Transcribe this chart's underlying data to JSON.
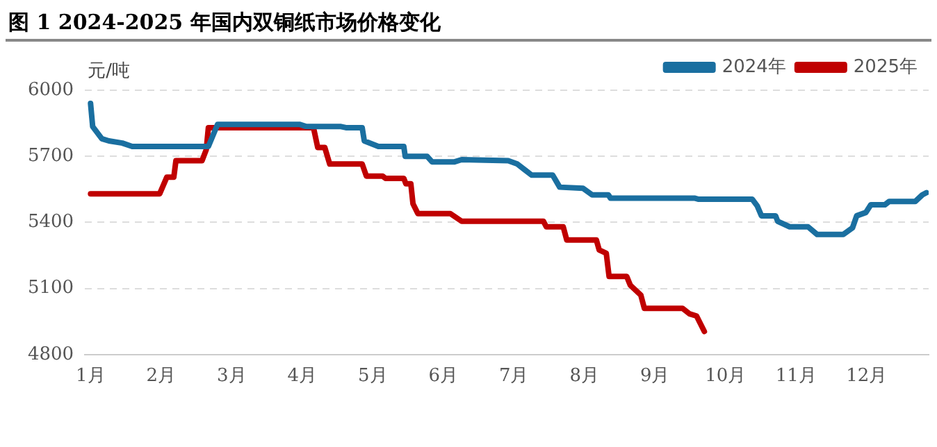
{
  "chart_data": {
    "type": "line",
    "title": "图 1 2024-2025 年国内双铜纸市场价格变化",
    "ylabel": "元/吨",
    "xlim": [
      0.92,
      12.88
    ],
    "xticks": [
      {
        "value": 1,
        "label": "1月"
      },
      {
        "value": 2,
        "label": "2月"
      },
      {
        "value": 3,
        "label": "3月"
      },
      {
        "value": 4,
        "label": "4月"
      },
      {
        "value": 5,
        "label": "5月"
      },
      {
        "value": 6,
        "label": "6月"
      },
      {
        "value": 7,
        "label": "7月"
      },
      {
        "value": 8,
        "label": "8月"
      },
      {
        "value": 9,
        "label": "9月"
      },
      {
        "value": 10,
        "label": "10月"
      },
      {
        "value": 11,
        "label": "11月"
      },
      {
        "value": 12,
        "label": "12月"
      }
    ],
    "ylim": [
      4800,
      6000
    ],
    "yticks": [
      4800,
      5100,
      5400,
      5700,
      6000
    ],
    "grid": "y",
    "legend": "top right",
    "marker": "none",
    "line_style": "solid",
    "series": [
      {
        "name": "2024年",
        "color": "#1a6fa0",
        "x": [
          1.0,
          1.03,
          1.16,
          1.26,
          1.45,
          1.59,
          2.67,
          2.8,
          3.96,
          4.06,
          4.55,
          4.62,
          4.85,
          4.88,
          5.08,
          5.44,
          5.46,
          5.77,
          5.84,
          6.16,
          6.26,
          6.92,
          7.05,
          7.15,
          7.25,
          7.55,
          7.65,
          7.98,
          8.11,
          8.34,
          8.37,
          9.56,
          9.62,
          10.38,
          10.45,
          10.51,
          10.71,
          10.74,
          10.91,
          11.17,
          11.3,
          11.67,
          11.8,
          11.86,
          11.99,
          12.06,
          12.26,
          12.32,
          12.69,
          12.79,
          12.85
        ],
        "values": [
          5940,
          5835,
          5780,
          5770,
          5760,
          5745,
          5745,
          5845,
          5845,
          5835,
          5835,
          5830,
          5830,
          5770,
          5745,
          5745,
          5700,
          5700,
          5675,
          5675,
          5685,
          5680,
          5665,
          5640,
          5615,
          5615,
          5560,
          5555,
          5525,
          5525,
          5510,
          5510,
          5505,
          5505,
          5475,
          5430,
          5430,
          5405,
          5380,
          5380,
          5345,
          5345,
          5375,
          5430,
          5445,
          5480,
          5480,
          5495,
          5495,
          5525,
          5535
        ]
      },
      {
        "name": "2025年",
        "color": "#c00000",
        "x": [
          1.0,
          1.98,
          2.08,
          2.18,
          2.21,
          2.58,
          2.64,
          2.67,
          4.16,
          4.22,
          4.32,
          4.39,
          4.85,
          4.91,
          5.14,
          5.18,
          5.44,
          5.47,
          5.54,
          5.57,
          5.64,
          6.1,
          6.26,
          6.33,
          7.42,
          7.46,
          7.7,
          7.75,
          8.17,
          8.21,
          8.31,
          8.35,
          8.6,
          8.65,
          8.8,
          8.85,
          9.39,
          9.49,
          9.59,
          9.7
        ],
        "values": [
          5530,
          5530,
          5605,
          5605,
          5680,
          5680,
          5730,
          5830,
          5830,
          5740,
          5740,
          5665,
          5665,
          5610,
          5610,
          5600,
          5600,
          5575,
          5575,
          5485,
          5440,
          5440,
          5405,
          5405,
          5405,
          5380,
          5380,
          5320,
          5320,
          5275,
          5260,
          5155,
          5155,
          5115,
          5070,
          5010,
          5010,
          4985,
          4975,
          4905
        ]
      }
    ]
  }
}
